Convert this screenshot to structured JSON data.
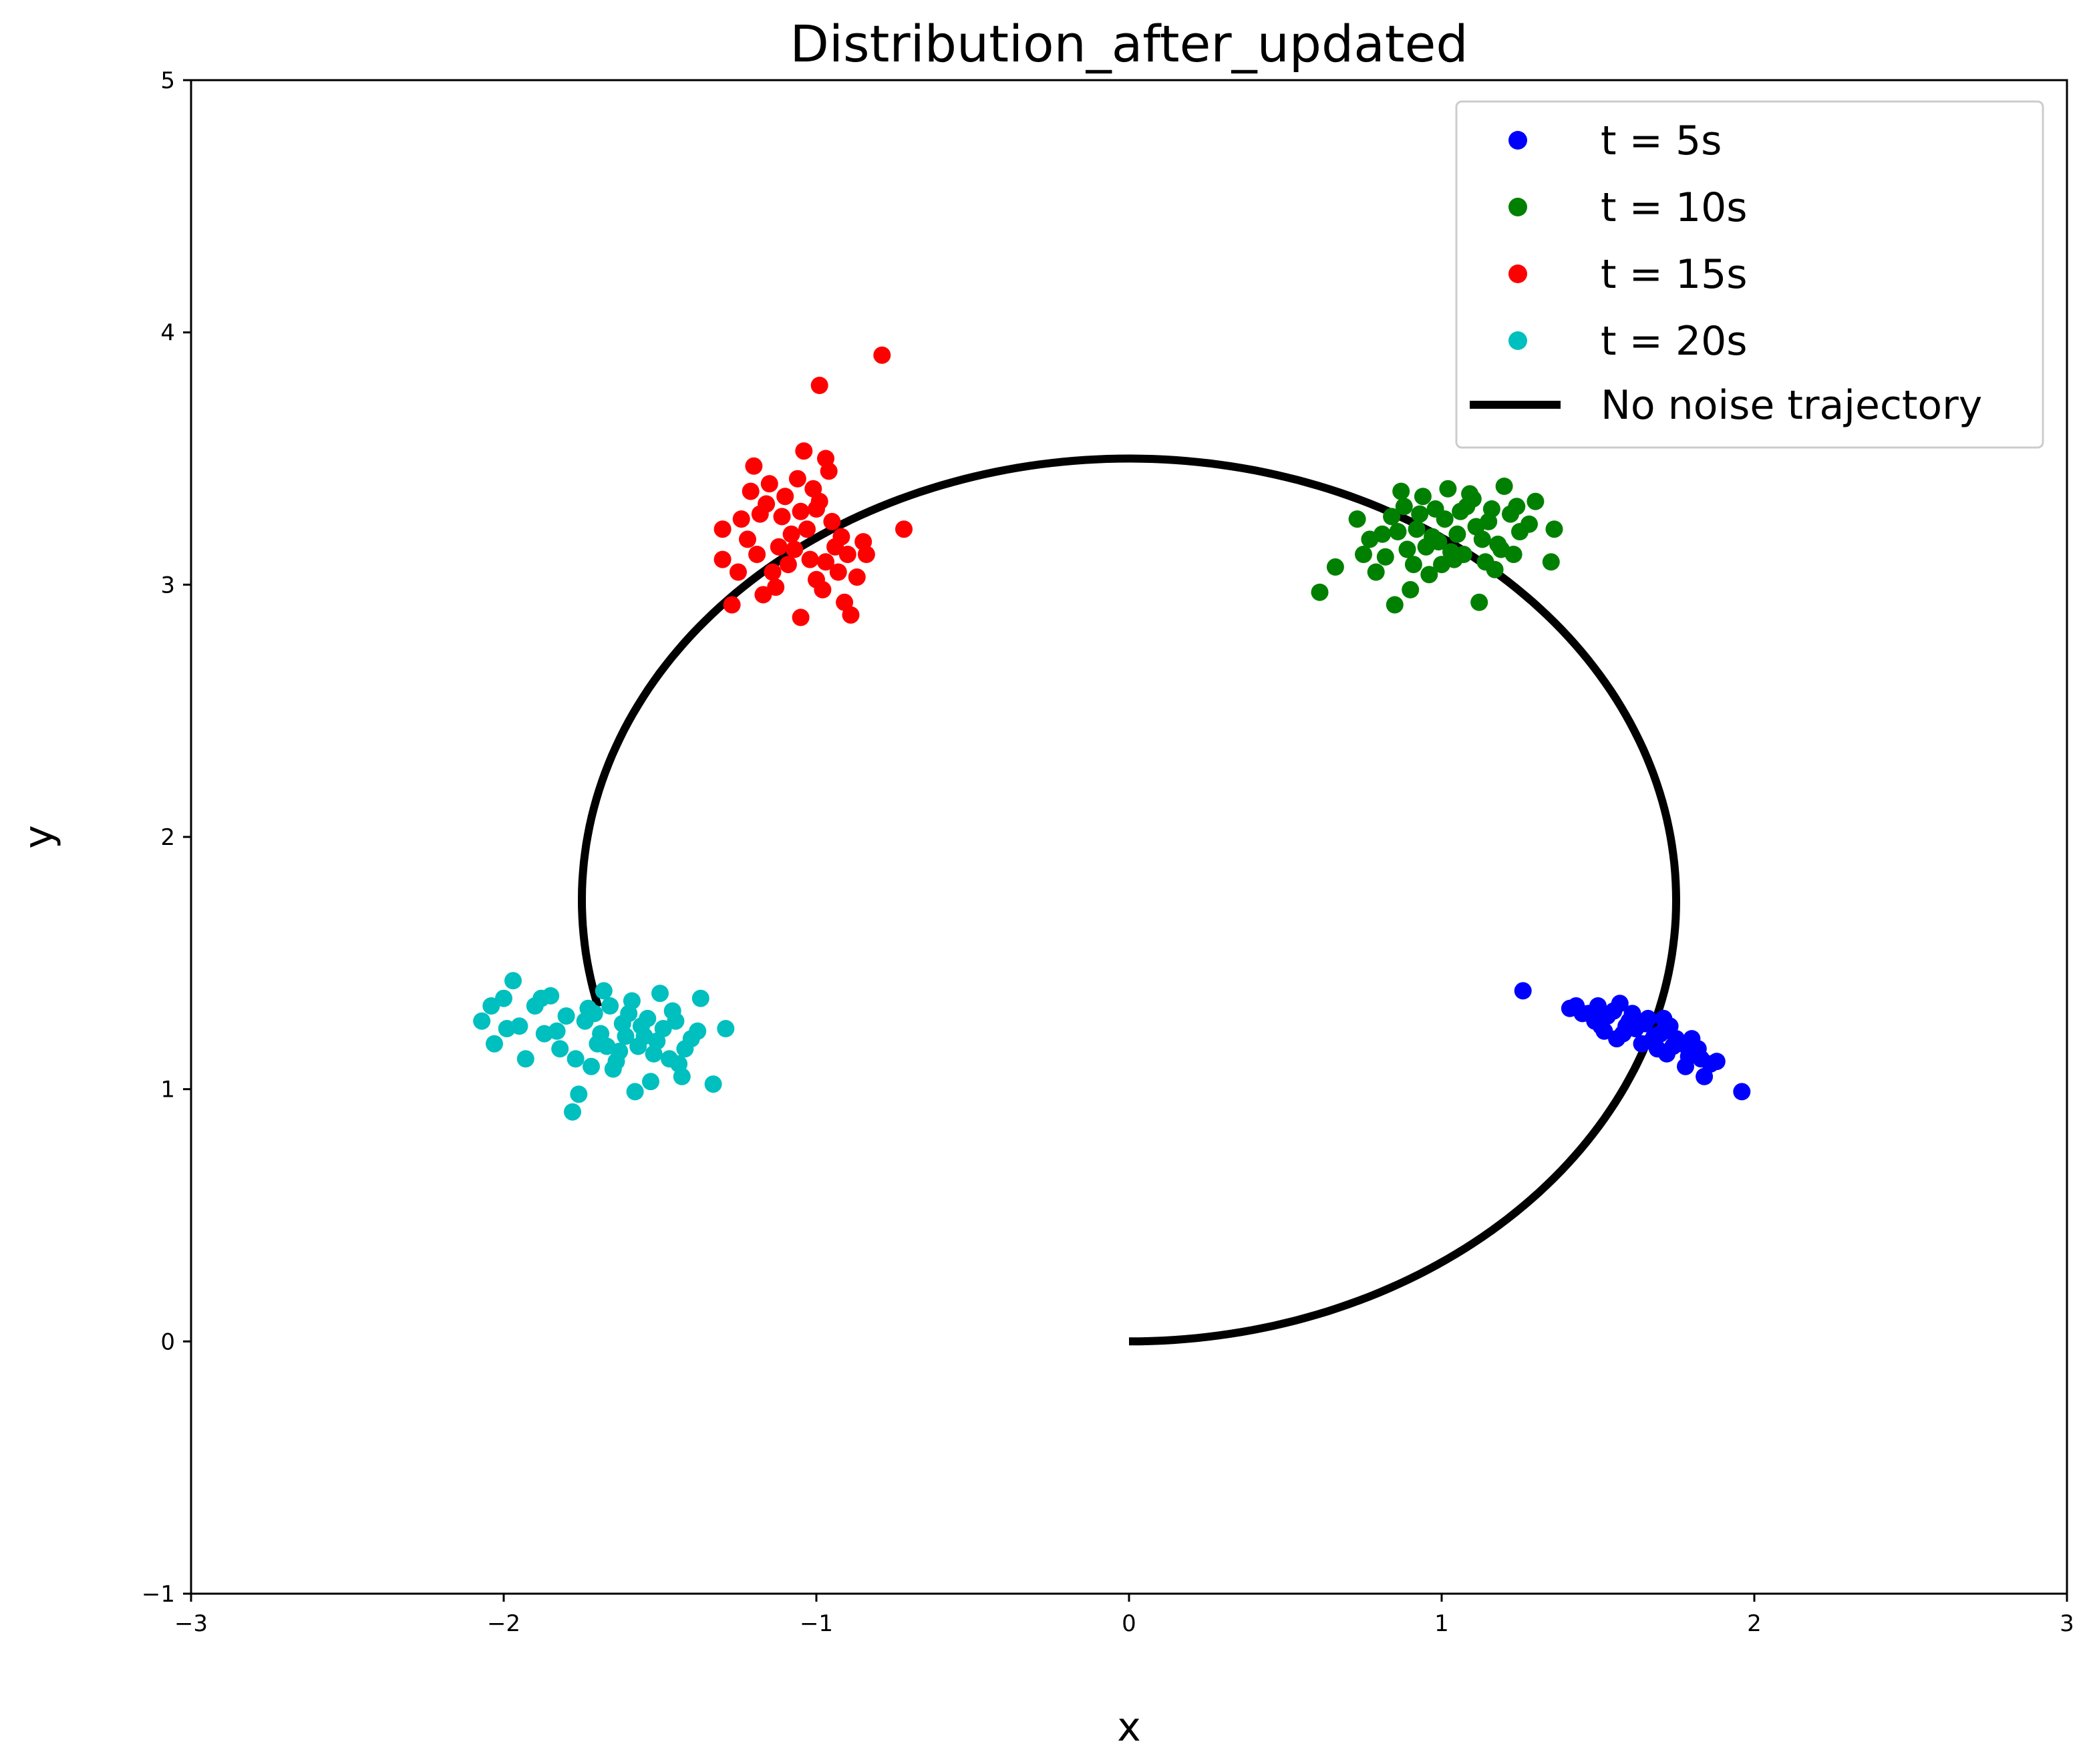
{
  "chart_data": {
    "type": "scatter",
    "title": "Distribution_after_updated",
    "xlabel": "x",
    "ylabel": "y",
    "xlim": [
      -3,
      3
    ],
    "ylim": [
      -1,
      5
    ],
    "xticks": [
      -3,
      -2,
      -1,
      0,
      1,
      2,
      3
    ],
    "yticks": [
      -1,
      0,
      1,
      2,
      3,
      4,
      5
    ],
    "xtick_labels": [
      "−3",
      "−2",
      "−1",
      "0",
      "1",
      "2",
      "3"
    ],
    "ytick_labels": [
      "−1",
      "0",
      "1",
      "2",
      "3",
      "4",
      "5"
    ],
    "grid": false,
    "legend_position": "top-right",
    "series": [
      {
        "name": "t = 5s",
        "color": "#0000ff",
        "points": [
          [
            1.26,
            1.39
          ],
          [
            1.96,
            0.99
          ],
          [
            1.55,
            1.31
          ],
          [
            1.6,
            1.27
          ],
          [
            1.47,
            1.3
          ],
          [
            1.7,
            1.22
          ],
          [
            1.82,
            1.16
          ],
          [
            1.88,
            1.11
          ],
          [
            1.84,
            1.05
          ],
          [
            1.43,
            1.33
          ],
          [
            1.51,
            1.25
          ],
          [
            1.64,
            1.18
          ],
          [
            1.75,
            1.2
          ],
          [
            1.79,
            1.13
          ],
          [
            1.66,
            1.28
          ],
          [
            1.58,
            1.22
          ],
          [
            1.53,
            1.29
          ],
          [
            1.69,
            1.16
          ],
          [
            1.73,
            1.25
          ],
          [
            1.41,
            1.32
          ],
          [
            1.49,
            1.27
          ],
          [
            1.62,
            1.24
          ],
          [
            1.77,
            1.18
          ],
          [
            1.86,
            1.1
          ],
          [
            1.57,
            1.34
          ],
          [
            1.45,
            1.3
          ],
          [
            1.68,
            1.21
          ],
          [
            1.72,
            1.14
          ],
          [
            1.8,
            1.2
          ],
          [
            1.65,
            1.26
          ],
          [
            1.56,
            1.2
          ],
          [
            1.61,
            1.3
          ],
          [
            1.5,
            1.33
          ],
          [
            1.74,
            1.17
          ],
          [
            1.83,
            1.12
          ],
          [
            1.59,
            1.25
          ],
          [
            1.67,
            1.19
          ],
          [
            1.52,
            1.23
          ],
          [
            1.71,
            1.28
          ],
          [
            1.78,
            1.09
          ]
        ]
      },
      {
        "name": "t = 10s",
        "color": "#008000",
        "points": [
          [
            0.61,
            2.97
          ],
          [
            0.66,
            3.07
          ],
          [
            0.73,
            3.26
          ],
          [
            0.77,
            3.18
          ],
          [
            0.82,
            3.11
          ],
          [
            0.85,
            2.92
          ],
          [
            0.87,
            3.37
          ],
          [
            0.9,
            2.98
          ],
          [
            0.92,
            3.22
          ],
          [
            0.95,
            3.15
          ],
          [
            0.98,
            3.3
          ],
          [
            1.0,
            3.08
          ],
          [
            1.02,
            3.38
          ],
          [
            1.05,
            3.2
          ],
          [
            1.07,
            3.12
          ],
          [
            1.1,
            3.34
          ],
          [
            1.12,
            2.93
          ],
          [
            1.15,
            3.25
          ],
          [
            1.18,
            3.16
          ],
          [
            1.2,
            3.39
          ],
          [
            1.22,
            3.28
          ],
          [
            1.25,
            3.21
          ],
          [
            1.28,
            3.24
          ],
          [
            1.3,
            3.33
          ],
          [
            1.36,
            3.22
          ],
          [
            1.35,
            3.09
          ],
          [
            0.79,
            3.05
          ],
          [
            0.84,
            3.27
          ],
          [
            0.89,
            3.14
          ],
          [
            0.94,
            3.35
          ],
          [
            0.97,
            3.19
          ],
          [
            1.01,
            3.26
          ],
          [
            1.04,
            3.1
          ],
          [
            1.08,
            3.31
          ],
          [
            1.13,
            3.18
          ],
          [
            1.17,
            3.06
          ],
          [
            1.23,
            3.12
          ],
          [
            0.86,
            3.21
          ],
          [
            0.91,
            3.08
          ],
          [
            1.06,
            3.29
          ],
          [
            1.11,
            3.23
          ],
          [
            0.99,
            3.17
          ],
          [
            0.93,
            3.28
          ],
          [
            1.03,
            3.13
          ],
          [
            1.16,
            3.3
          ],
          [
            0.81,
            3.2
          ],
          [
            0.96,
            3.04
          ],
          [
            1.09,
            3.36
          ],
          [
            1.19,
            3.14
          ],
          [
            1.24,
            3.31
          ],
          [
            0.75,
            3.12
          ],
          [
            0.88,
            3.31
          ],
          [
            1.14,
            3.09
          ]
        ]
      },
      {
        "name": "t = 15s",
        "color": "#ff0000",
        "points": [
          [
            -0.79,
            3.91
          ],
          [
            -0.99,
            3.79
          ],
          [
            -1.04,
            3.53
          ],
          [
            -1.2,
            3.47
          ],
          [
            -0.72,
            3.22
          ],
          [
            -1.3,
            3.22
          ],
          [
            -1.3,
            3.1
          ],
          [
            -1.27,
            2.92
          ],
          [
            -1.05,
            2.87
          ],
          [
            -0.89,
            2.88
          ],
          [
            -0.85,
            3.17
          ],
          [
            -0.97,
            3.5
          ],
          [
            -1.15,
            3.4
          ],
          [
            -1.1,
            3.35
          ],
          [
            -1.0,
            3.3
          ],
          [
            -0.95,
            3.25
          ],
          [
            -1.08,
            3.2
          ],
          [
            -1.12,
            3.15
          ],
          [
            -1.02,
            3.1
          ],
          [
            -0.93,
            3.05
          ],
          [
            -1.18,
            3.28
          ],
          [
            -1.22,
            3.18
          ],
          [
            -1.14,
            3.05
          ],
          [
            -0.98,
            2.98
          ],
          [
            -0.9,
            3.12
          ],
          [
            -0.87,
            3.03
          ],
          [
            -1.06,
            3.42
          ],
          [
            -1.16,
            3.32
          ],
          [
            -1.24,
            3.26
          ],
          [
            -1.01,
            3.38
          ],
          [
            -0.96,
            3.45
          ],
          [
            -1.09,
            3.08
          ],
          [
            -1.13,
            2.99
          ],
          [
            -0.94,
            3.15
          ],
          [
            -1.03,
            3.22
          ],
          [
            -1.19,
            3.12
          ],
          [
            -1.11,
            3.27
          ],
          [
            -0.99,
            3.33
          ],
          [
            -1.07,
            3.14
          ],
          [
            -0.92,
            3.19
          ],
          [
            -1.25,
            3.05
          ],
          [
            -0.84,
            3.12
          ],
          [
            -1.17,
            2.96
          ],
          [
            -1.21,
            3.37
          ],
          [
            -1.0,
            3.02
          ],
          [
            -0.91,
            2.93
          ],
          [
            -1.05,
            3.29
          ],
          [
            -0.97,
            3.09
          ]
        ]
      },
      {
        "name": "t = 20s",
        "color": "#00bfbf",
        "points": [
          [
            -2.07,
            1.27
          ],
          [
            -2.04,
            1.33
          ],
          [
            -2.0,
            1.36
          ],
          [
            -1.97,
            1.43
          ],
          [
            -1.95,
            1.25
          ],
          [
            -1.93,
            1.12
          ],
          [
            -1.9,
            1.33
          ],
          [
            -1.87,
            1.22
          ],
          [
            -1.85,
            1.37
          ],
          [
            -1.82,
            1.16
          ],
          [
            -1.8,
            1.29
          ],
          [
            -1.78,
            0.91
          ],
          [
            -1.76,
            0.98
          ],
          [
            -1.73,
            1.32
          ],
          [
            -1.7,
            1.18
          ],
          [
            -1.68,
            1.39
          ],
          [
            -1.65,
            1.08
          ],
          [
            -1.62,
            1.26
          ],
          [
            -1.6,
            1.3
          ],
          [
            -1.58,
            0.99
          ],
          [
            -1.55,
            1.21
          ],
          [
            -1.53,
            1.03
          ],
          [
            -1.5,
            1.38
          ],
          [
            -1.47,
            1.12
          ],
          [
            -1.45,
            1.27
          ],
          [
            -1.43,
            1.05
          ],
          [
            -1.4,
            1.2
          ],
          [
            -1.37,
            1.36
          ],
          [
            -1.33,
            1.02
          ],
          [
            -1.29,
            1.24
          ],
          [
            -1.99,
            1.24
          ],
          [
            -2.03,
            1.18
          ],
          [
            -1.88,
            1.36
          ],
          [
            -1.83,
            1.23
          ],
          [
            -1.77,
            1.12
          ],
          [
            -1.74,
            1.27
          ],
          [
            -1.72,
            1.09
          ],
          [
            -1.69,
            1.22
          ],
          [
            -1.66,
            1.33
          ],
          [
            -1.63,
            1.15
          ],
          [
            -1.61,
            1.21
          ],
          [
            -1.59,
            1.35
          ],
          [
            -1.57,
            1.17
          ],
          [
            -1.54,
            1.28
          ],
          [
            -1.52,
            1.14
          ],
          [
            -1.49,
            1.24
          ],
          [
            -1.46,
            1.31
          ],
          [
            -1.42,
            1.16
          ],
          [
            -1.38,
            1.23
          ],
          [
            -1.64,
            1.11
          ],
          [
            -1.56,
            1.25
          ],
          [
            -1.71,
            1.3
          ],
          [
            -1.67,
            1.17
          ],
          [
            -1.51,
            1.19
          ],
          [
            -1.44,
            1.1
          ]
        ]
      },
      {
        "name": "No noise trajectory",
        "color": "#000000",
        "kind": "line",
        "curve": {
          "cx": 0,
          "cy": 1.75,
          "rx": 1.75,
          "ry": 1.75,
          "from_deg": -90,
          "to_deg": 194
        }
      }
    ]
  }
}
